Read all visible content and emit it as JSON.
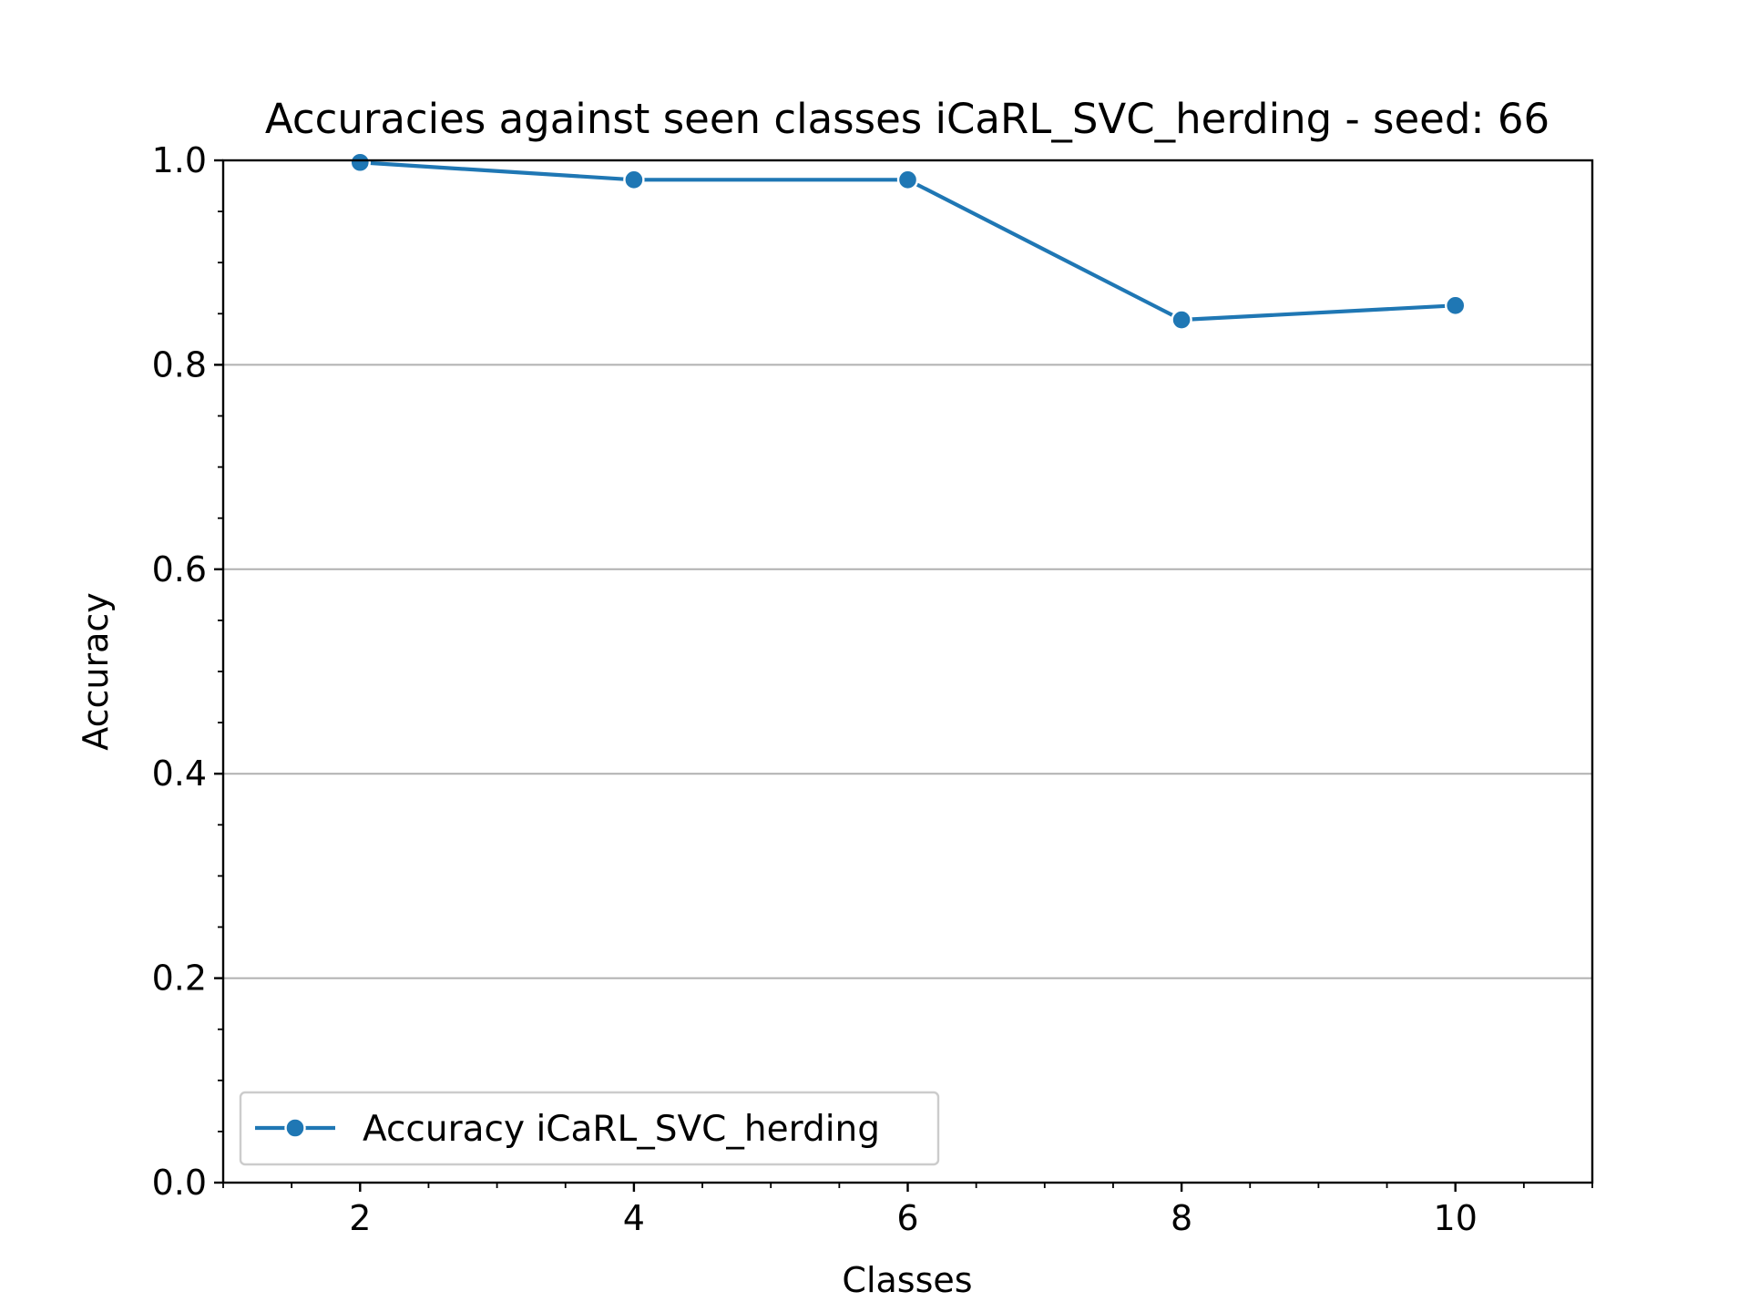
{
  "chart_data": {
    "type": "line",
    "title": "Accuracies against seen classes iCaRL_SVC_herding - seed: 66",
    "xlabel": "Classes",
    "ylabel": "Accuracy",
    "xlim": [
      1,
      11
    ],
    "ylim": [
      0.0,
      1.0
    ],
    "x_ticks": [
      2,
      4,
      6,
      8,
      10
    ],
    "x_tick_labels": [
      "2",
      "4",
      "6",
      "8",
      "10"
    ],
    "x_minor_ticks": [
      1,
      1.5,
      2.5,
      3,
      3.5,
      4.5,
      5,
      5.5,
      6.5,
      7,
      7.5,
      8.5,
      9,
      9.5,
      10.5,
      11
    ],
    "y_ticks": [
      0.0,
      0.2,
      0.4,
      0.6,
      0.8,
      1.0
    ],
    "y_tick_labels": [
      "0.0",
      "0.2",
      "0.4",
      "0.6",
      "0.8",
      "1.0"
    ],
    "y_minor_ticks": [
      0.05,
      0.1,
      0.15,
      0.25,
      0.3,
      0.35,
      0.45,
      0.5,
      0.55,
      0.65,
      0.7,
      0.75,
      0.85,
      0.9,
      0.95
    ],
    "grid": "horizontal-major",
    "legend_position": "lower-left",
    "series": [
      {
        "name": "Accuracy iCaRL_SVC_herding",
        "color": "#1f77b4",
        "marker": "circle",
        "x": [
          2,
          4,
          6,
          8,
          10
        ],
        "y": [
          0.998,
          0.981,
          0.981,
          0.844,
          0.858
        ]
      }
    ]
  }
}
